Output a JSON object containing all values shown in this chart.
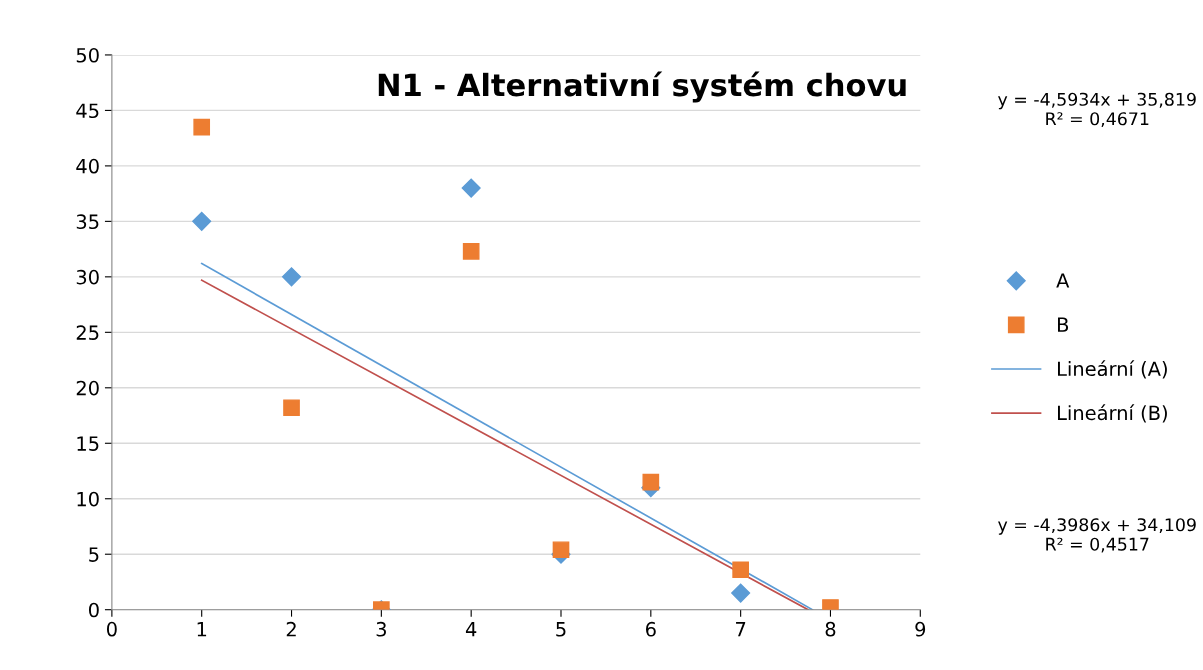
{
  "chart_data": {
    "type": "scatter",
    "title": "N1 - Alternativní systém chovu",
    "x": [
      1,
      2,
      3,
      4,
      5,
      6,
      7,
      8
    ],
    "series": [
      {
        "name": "A",
        "color": "#5b9bd5",
        "marker": "diamond",
        "values": [
          35,
          30,
          0,
          38,
          5,
          11,
          1.5,
          null
        ]
      },
      {
        "name": "B",
        "color": "#ed7d31",
        "marker": "square",
        "values": [
          43.5,
          18.2,
          0,
          32.3,
          5.4,
          11.5,
          3.6,
          0.2
        ]
      },
      {
        "name": "Lineární (A)",
        "type": "line",
        "color": "#5b9bd5",
        "marker": "none",
        "x": [
          1,
          7.8
        ],
        "values": [
          31.2,
          0
        ]
      },
      {
        "name": "Lineární (B)",
        "type": "line",
        "color": "#c0504d",
        "marker": "none",
        "x": [
          1,
          7.75
        ],
        "values": [
          29.7,
          0
        ]
      }
    ],
    "xlim": [
      0,
      9
    ],
    "xticks": [
      0,
      1,
      2,
      3,
      4,
      5,
      6,
      7,
      8,
      9
    ],
    "ylim": [
      0,
      50
    ],
    "yticks": [
      0,
      5,
      10,
      15,
      20,
      25,
      30,
      35,
      40,
      45,
      50
    ],
    "grid": "y",
    "legend": "right",
    "annotations": [
      "y = -4,5934x + 35,819\nR² = 0,4671",
      "y = -4,3986x + 34,109\nR² = 0,4517"
    ]
  }
}
